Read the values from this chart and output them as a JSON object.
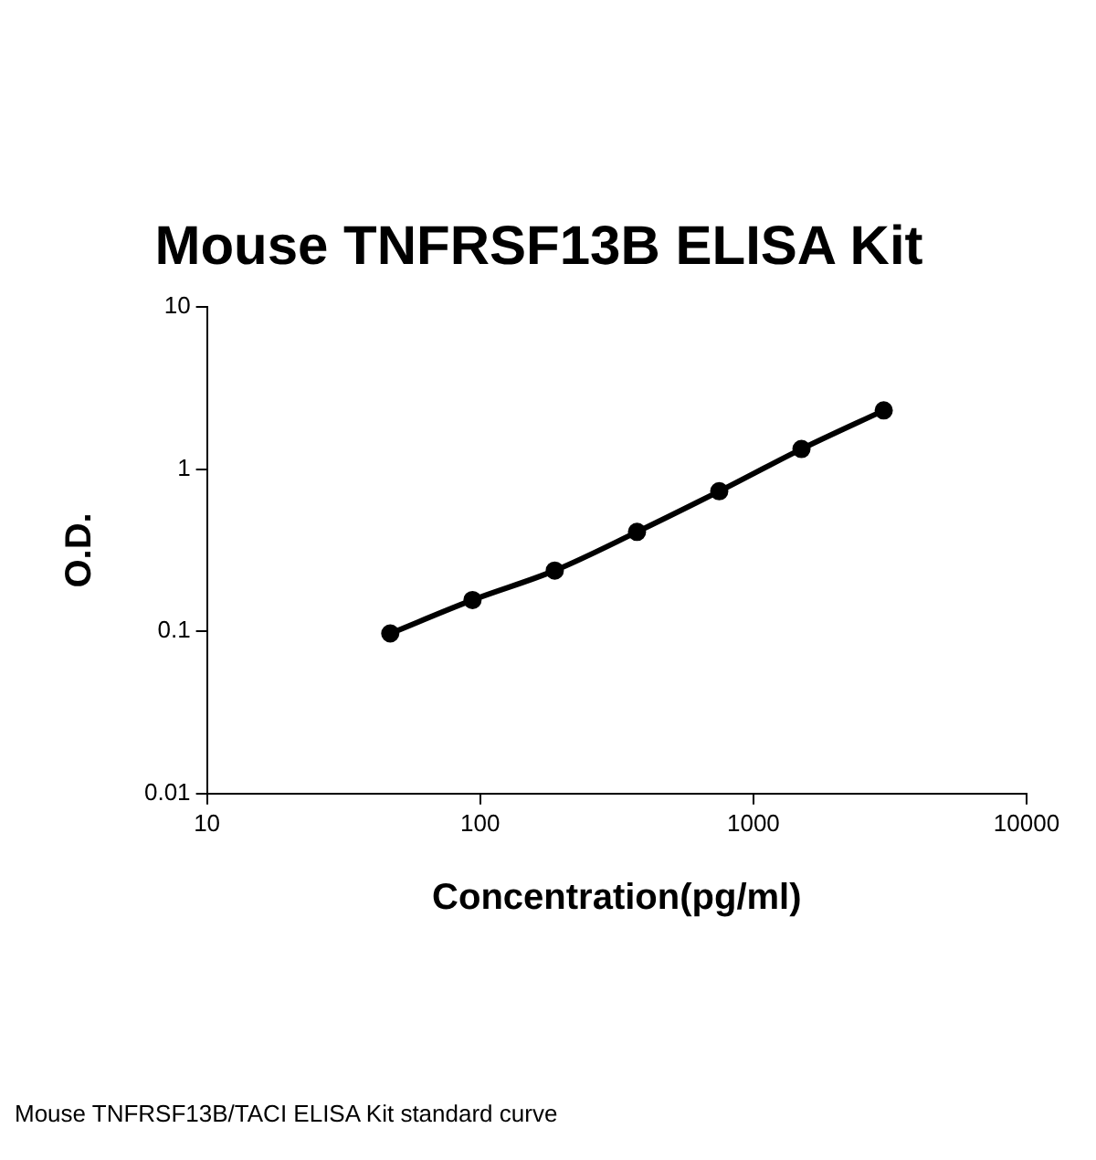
{
  "chart_data": {
    "type": "line",
    "title": "Mouse TNFRSF13B ELISA Kit",
    "xlabel": "Concentration(pg/ml)",
    "ylabel": "O.D.",
    "x": [
      46.875,
      93.75,
      187.5,
      375,
      750,
      1500,
      3000
    ],
    "series": [
      {
        "color": "#000000",
        "values": [
          0.097,
          0.156,
          0.237,
          0.41,
          0.73,
          1.33,
          2.3
        ]
      }
    ],
    "log": "xy",
    "xlim": [
      10,
      10000
    ],
    "xticks": [
      10,
      100,
      1000,
      10000
    ],
    "ylim": [
      0.01,
      10
    ],
    "yticks": [
      0.01,
      0.1,
      1,
      10
    ],
    "grid": false,
    "legend": false,
    "marker": "circle",
    "line_style": "solid",
    "annotations": [
      "Mouse TNFRSF13B/TACI ELISA Kit standard curve"
    ]
  }
}
